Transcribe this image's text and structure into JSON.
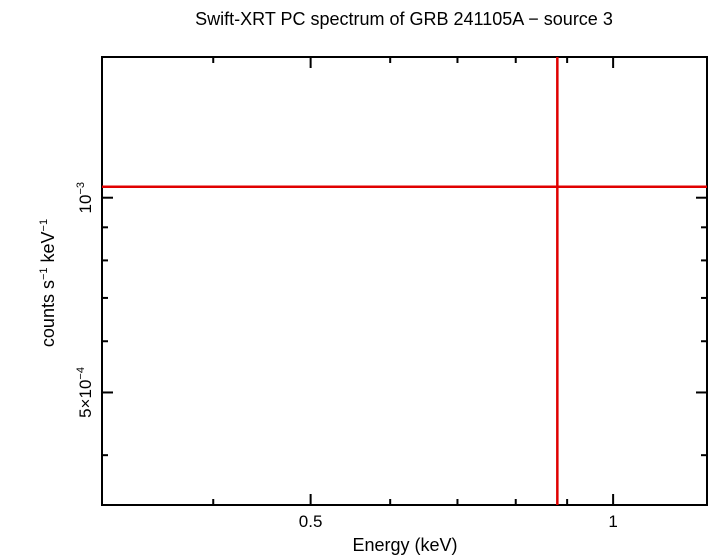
{
  "chart_data": {
    "type": "scatter",
    "title": "Swift-XRT PC spectrum of GRB 241105A − source 3",
    "xlabel": "Energy (keV)",
    "ylabel": {
      "base": "counts s",
      "sup1": "−1",
      "mid": " keV",
      "sup2": "−1"
    },
    "x_scale": "log",
    "y_scale": "log",
    "xlim": [
      0.31,
      1.24
    ],
    "ylim": [
      0.000335,
      0.00165
    ],
    "x_ticks": [
      {
        "value": 0.5,
        "label": "0.5"
      },
      {
        "value": 1,
        "label": "1"
      }
    ],
    "y_ticks": [
      {
        "value": 0.0005,
        "mantissa": "5×10",
        "exponent": "−4"
      },
      {
        "value": 0.001,
        "mantissa": "10",
        "exponent": "−3"
      }
    ],
    "x_minor_ticks": [
      0.4,
      0.6,
      0.7,
      0.8,
      0.9
    ],
    "y_minor_ticks": [
      0.0004,
      0.0006,
      0.0007,
      0.0008,
      0.0009
    ],
    "grid": false,
    "series": [
      {
        "color": "#e00000",
        "points": [
          {
            "x": 0.88,
            "y": 0.00104,
            "x_err": [
              0.31,
              1.24
            ],
            "y_err": [
              0.000335,
              0.00165
            ]
          }
        ]
      }
    ]
  }
}
